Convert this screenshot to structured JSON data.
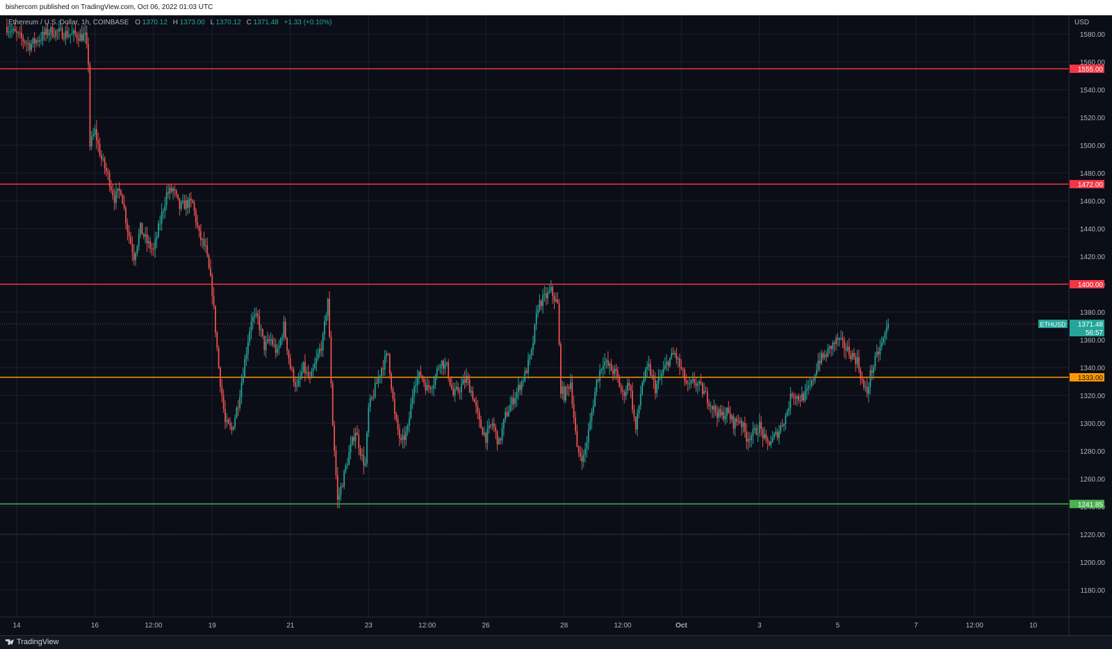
{
  "publish_banner": "bishercom published on TradingView.com, Oct 06, 2022 01:03 UTC",
  "legend": {
    "symbol": "Ethereum / U.S. Dollar, 1h, COINBASE",
    "open_label": "O",
    "open": "1370.12",
    "high_label": "H",
    "high": "1373.00",
    "low_label": "L",
    "low": "1370.12",
    "close_label": "C",
    "close": "1371.48",
    "change": "+1.33 (+0.10%)"
  },
  "footer_brand": "TradingView",
  "colors": {
    "up": "#26a69a",
    "down": "#ef5350",
    "resistance": "#f23645",
    "pivot": "#ff9800",
    "support": "#4caf50",
    "grid": "#1c2030",
    "axis_text": "#b2b5be"
  },
  "chart_data": {
    "type": "candlestick",
    "currency": "USD",
    "ylim": [
      1170,
      1590
    ],
    "y_ticks": [
      1180,
      1200,
      1220,
      1240,
      1260,
      1280,
      1300,
      1320,
      1340,
      1360,
      1380,
      1400,
      1420,
      1440,
      1460,
      1480,
      1500,
      1520,
      1540,
      1560,
      1580
    ],
    "x_ticks": [
      {
        "label": "14",
        "t": 0
      },
      {
        "label": "16",
        "t": 48
      },
      {
        "label": "12:00",
        "t": 84
      },
      {
        "label": "19",
        "t": 120
      },
      {
        "label": "21",
        "t": 168
      },
      {
        "label": "23",
        "t": 216
      },
      {
        "label": "12:00",
        "t": 252
      },
      {
        "label": "26",
        "t": 288
      },
      {
        "label": "28",
        "t": 336
      },
      {
        "label": "12:00",
        "t": 372
      },
      {
        "label": "Oct",
        "t": 408,
        "bold": true
      },
      {
        "label": "3",
        "t": 456
      },
      {
        "label": "5",
        "t": 504
      },
      {
        "label": "7",
        "t": 552
      },
      {
        "label": "12:00",
        "t": 588
      },
      {
        "label": "10",
        "t": 624
      }
    ],
    "horizontal_levels": [
      {
        "value": 1555.0,
        "label": "1555.00",
        "kind": "resistance"
      },
      {
        "value": 1472.0,
        "label": "1472.00",
        "kind": "resistance"
      },
      {
        "value": 1400.0,
        "label": "1400.00",
        "kind": "resistance"
      },
      {
        "value": 1333.0,
        "label": "1333.00",
        "kind": "pivot"
      },
      {
        "value": 1241.85,
        "label": "1241.85",
        "kind": "support"
      }
    ],
    "dotted_low": 1220.0,
    "last_price": {
      "symbol": "ETHUSD",
      "value": 1371.48,
      "label": "1371.48",
      "countdown": "56:57"
    },
    "anchors": [
      [
        -6,
        1585
      ],
      [
        8,
        1572
      ],
      [
        20,
        1582
      ],
      [
        32,
        1580
      ],
      [
        42,
        1578
      ],
      [
        44,
        1560
      ],
      [
        45,
        1500
      ],
      [
        48,
        1510
      ],
      [
        52,
        1490
      ],
      [
        56,
        1478
      ],
      [
        60,
        1462
      ],
      [
        64,
        1468
      ],
      [
        68,
        1440
      ],
      [
        72,
        1420
      ],
      [
        76,
        1440
      ],
      [
        80,
        1430
      ],
      [
        84,
        1424
      ],
      [
        88,
        1445
      ],
      [
        92,
        1465
      ],
      [
        96,
        1468
      ],
      [
        100,
        1455
      ],
      [
        104,
        1458
      ],
      [
        108,
        1458
      ],
      [
        112,
        1435
      ],
      [
        116,
        1425
      ],
      [
        120,
        1395
      ],
      [
        124,
        1340
      ],
      [
        128,
        1300
      ],
      [
        132,
        1295
      ],
      [
        136,
        1315
      ],
      [
        140,
        1345
      ],
      [
        144,
        1375
      ],
      [
        148,
        1375
      ],
      [
        152,
        1355
      ],
      [
        156,
        1360
      ],
      [
        160,
        1350
      ],
      [
        164,
        1370
      ],
      [
        168,
        1340
      ],
      [
        172,
        1325
      ],
      [
        176,
        1340
      ],
      [
        180,
        1330
      ],
      [
        184,
        1345
      ],
      [
        188,
        1360
      ],
      [
        191,
        1390
      ],
      [
        194,
        1300
      ],
      [
        197,
        1244
      ],
      [
        200,
        1258
      ],
      [
        204,
        1278
      ],
      [
        208,
        1295
      ],
      [
        212,
        1275
      ],
      [
        214,
        1270
      ],
      [
        216,
        1310
      ],
      [
        220,
        1325
      ],
      [
        224,
        1340
      ],
      [
        228,
        1350
      ],
      [
        232,
        1305
      ],
      [
        236,
        1285
      ],
      [
        240,
        1295
      ],
      [
        244,
        1330
      ],
      [
        248,
        1335
      ],
      [
        252,
        1325
      ],
      [
        256,
        1330
      ],
      [
        260,
        1345
      ],
      [
        264,
        1340
      ],
      [
        268,
        1320
      ],
      [
        272,
        1325
      ],
      [
        276,
        1332
      ],
      [
        280,
        1320
      ],
      [
        284,
        1300
      ],
      [
        288,
        1290
      ],
      [
        292,
        1300
      ],
      [
        296,
        1285
      ],
      [
        300,
        1305
      ],
      [
        304,
        1315
      ],
      [
        308,
        1325
      ],
      [
        312,
        1335
      ],
      [
        316,
        1350
      ],
      [
        320,
        1385
      ],
      [
        324,
        1390
      ],
      [
        328,
        1395
      ],
      [
        332,
        1385
      ],
      [
        334,
        1325
      ],
      [
        336,
        1320
      ],
      [
        340,
        1330
      ],
      [
        344,
        1280
      ],
      [
        348,
        1275
      ],
      [
        352,
        1300
      ],
      [
        356,
        1330
      ],
      [
        360,
        1345
      ],
      [
        364,
        1340
      ],
      [
        368,
        1335
      ],
      [
        372,
        1320
      ],
      [
        376,
        1330
      ],
      [
        380,
        1295
      ],
      [
        384,
        1330
      ],
      [
        388,
        1340
      ],
      [
        392,
        1325
      ],
      [
        396,
        1335
      ],
      [
        400,
        1345
      ],
      [
        404,
        1350
      ],
      [
        408,
        1338
      ],
      [
        412,
        1325
      ],
      [
        416,
        1330
      ],
      [
        420,
        1325
      ],
      [
        424,
        1318
      ],
      [
        428,
        1310
      ],
      [
        432,
        1305
      ],
      [
        436,
        1308
      ],
      [
        440,
        1300
      ],
      [
        444,
        1303
      ],
      [
        448,
        1290
      ],
      [
        452,
        1292
      ],
      [
        456,
        1298
      ],
      [
        460,
        1285
      ],
      [
        464,
        1288
      ],
      [
        468,
        1295
      ],
      [
        472,
        1305
      ],
      [
        476,
        1322
      ],
      [
        480,
        1318
      ],
      [
        484,
        1320
      ],
      [
        488,
        1328
      ],
      [
        492,
        1345
      ],
      [
        496,
        1348
      ],
      [
        500,
        1355
      ],
      [
        504,
        1360
      ],
      [
        508,
        1355
      ],
      [
        512,
        1350
      ],
      [
        516,
        1345
      ],
      [
        520,
        1325
      ],
      [
        522,
        1322
      ],
      [
        524,
        1335
      ],
      [
        528,
        1348
      ],
      [
        532,
        1360
      ],
      [
        535,
        1371.5
      ]
    ]
  }
}
